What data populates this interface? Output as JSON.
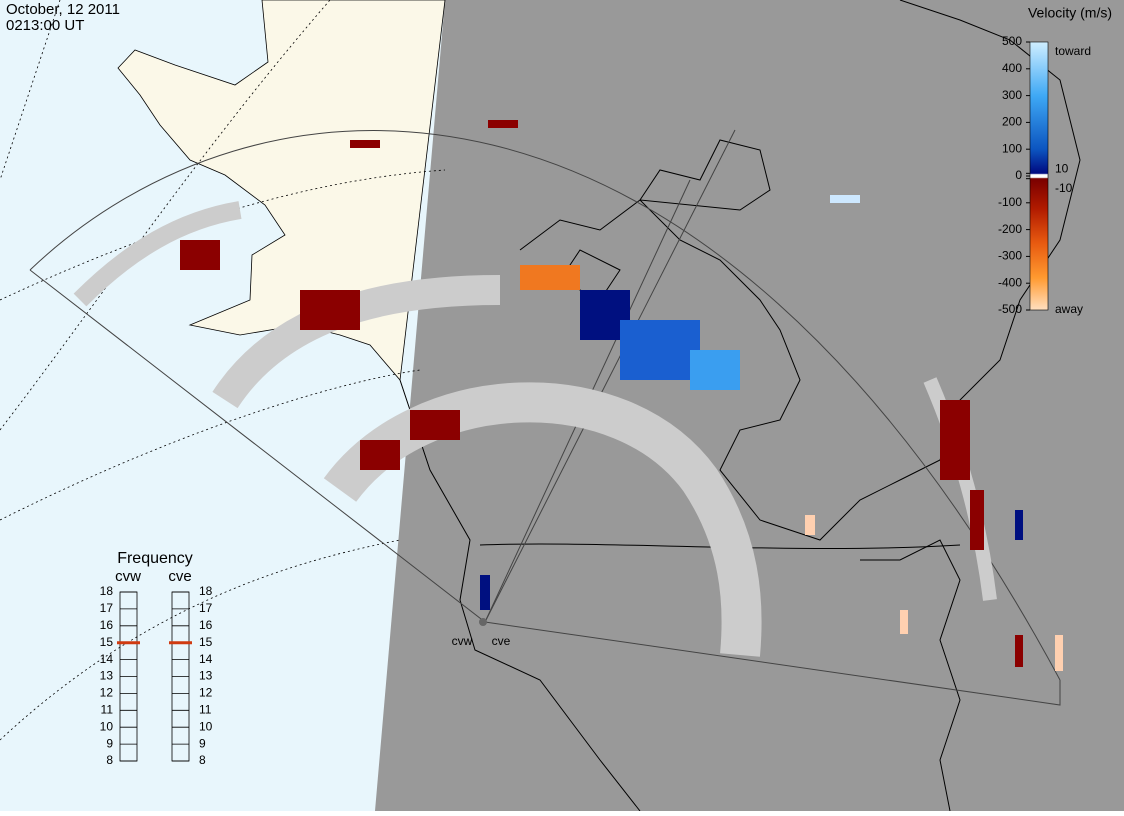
{
  "header": {
    "date": "October, 12 2011",
    "time": "0213:00 UT"
  },
  "velocity_scale": {
    "title": "Velocity (m/s)",
    "lim": [
      -500,
      500
    ],
    "ticks": [
      500,
      400,
      300,
      200,
      100,
      10,
      0,
      -10,
      -100,
      -200,
      -300,
      -400,
      -500
    ],
    "toward": "toward",
    "away": "away"
  },
  "frequency": {
    "title": "Frequency",
    "lim": [
      8,
      18
    ],
    "ticks": [
      8,
      9,
      10,
      11,
      12,
      13,
      14,
      15,
      16,
      17,
      18
    ],
    "radars": [
      {
        "name": "cvw",
        "value": 15
      },
      {
        "name": "cve",
        "value": 15
      }
    ]
  }
}
